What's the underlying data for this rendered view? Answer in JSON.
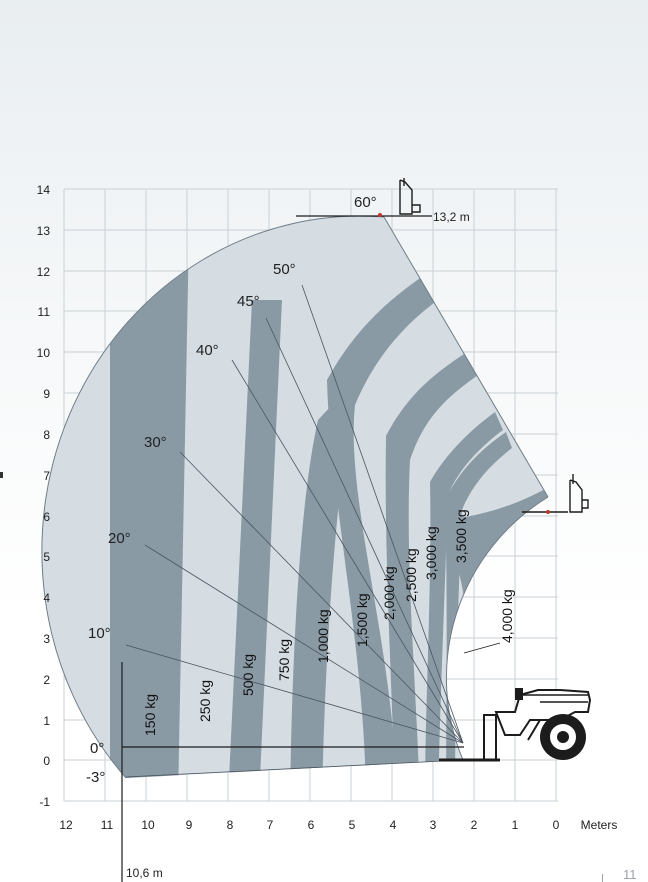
{
  "diagram": {
    "y_axis_ticks": [
      "14",
      "13",
      "12",
      "11",
      "10",
      "9",
      "8",
      "7",
      "6",
      "5",
      "4",
      "3",
      "2",
      "1",
      "0",
      "-1"
    ],
    "x_axis_ticks": [
      "12",
      "11",
      "10",
      "9",
      "8",
      "7",
      "6",
      "5",
      "4",
      "3",
      "2",
      "1",
      "0"
    ],
    "x_axis_unit": "Meters",
    "angle_labels": [
      "60°",
      "50°",
      "45°",
      "40°",
      "30°",
      "20°",
      "10°",
      "0°",
      "-3°"
    ],
    "load_labels": [
      "150 kg",
      "250 kg",
      "500 kg",
      "750 kg",
      "1,000 kg",
      "1,500 kg",
      "2,000 kg",
      "2,500 kg",
      "3,000 kg",
      "3,500 kg",
      "4,000 kg"
    ],
    "max_height_label": "13,2 m",
    "max_reach_label": "10,6 m",
    "colors": {
      "zone_dark": "#8a9aa5",
      "zone_light": "#d5dde3",
      "grid": "#c9d0d5",
      "arc": "#6f7d87",
      "machine": "#1c1c1c",
      "accent": "#c0392b"
    }
  },
  "page": {
    "number": "11"
  }
}
